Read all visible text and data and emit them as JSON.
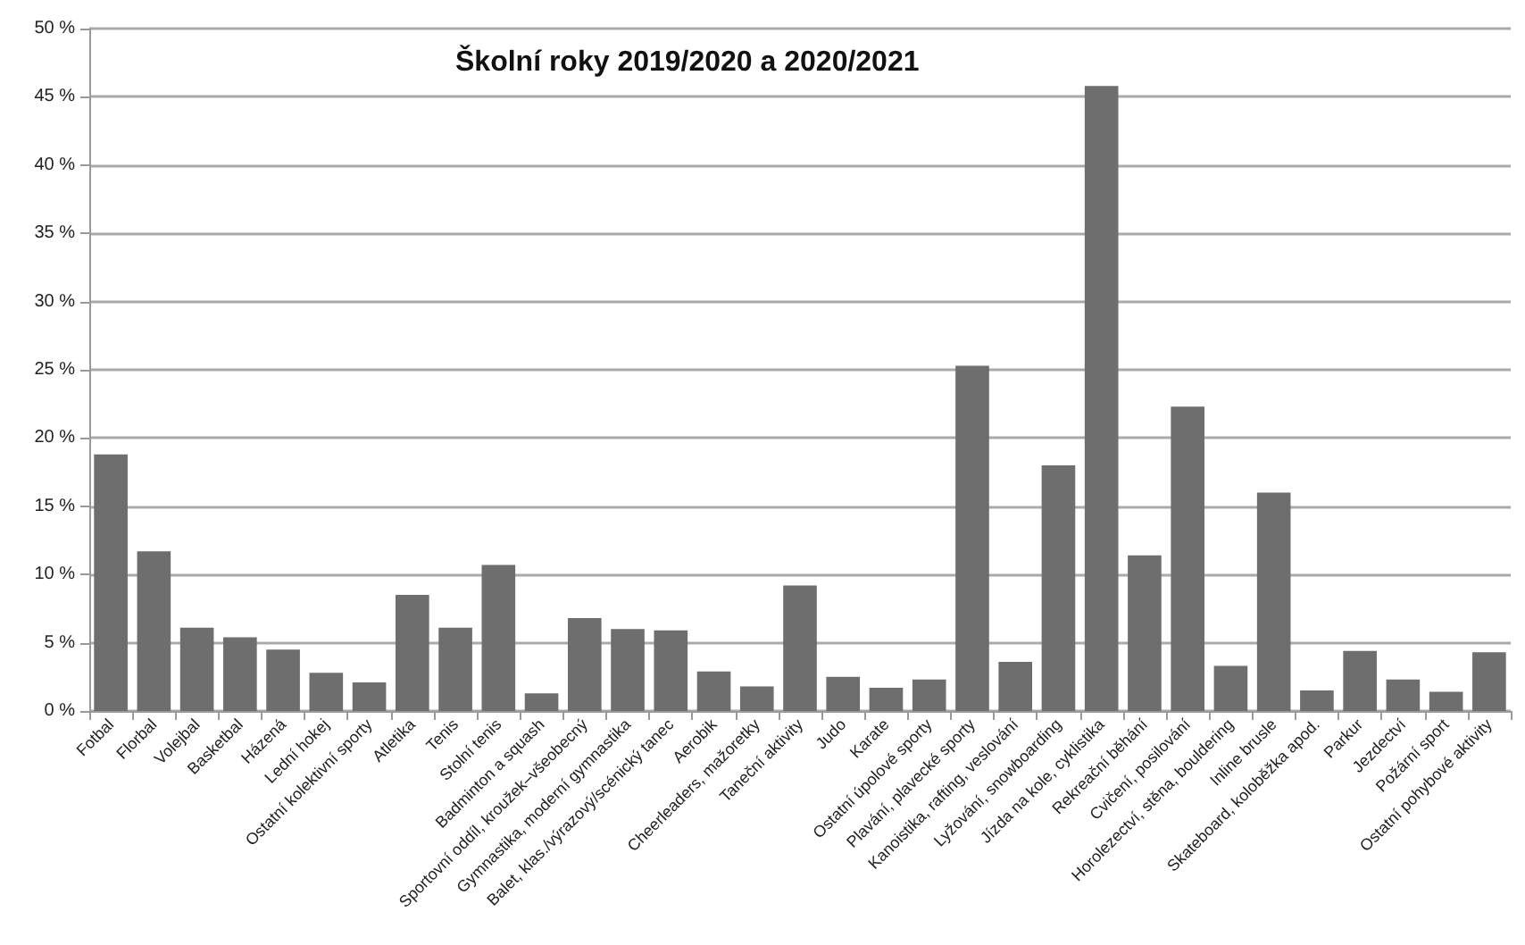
{
  "chart_data": {
    "type": "bar",
    "title": "Školní roky 2019/2020 a 2020/2021",
    "categories": [
      "Fotbal",
      "Florbal",
      "Volejbal",
      "Basketbal",
      "Házená",
      "Lední hokej",
      "Ostatní kolektivní sporty",
      "Atletika",
      "Tenis",
      "Stolní tenis",
      "Badminton a squash",
      "Sportovní oddíl, kroužek–všeobecný",
      "Gymnastika, moderní gymnastika",
      "Balet, klas./výrazový/scénický tanec",
      "Aerobik",
      "Cheerleaders, mažoretky",
      "Taneční aktivity",
      "Judo",
      "Karate",
      "Ostatní úpolové sporty",
      "Plavání, plavecké sporty",
      "Kanoistika, rafting, veslování",
      "Lyžování, snowboarding",
      "Jízda na kole, cyklistika",
      "Rekreační běhání",
      "Cvičení, posilování",
      "Horolezectví, stěna, bouldering",
      "Inline brusle",
      "Skateboard, koloběžka apod.",
      "Parkur",
      "Jezdectví",
      "Požární sport",
      "Ostatní pohybové aktivity"
    ],
    "values": [
      18.8,
      11.7,
      6.1,
      5.4,
      4.5,
      2.8,
      2.1,
      8.5,
      6.1,
      10.7,
      1.3,
      6.8,
      6.0,
      5.9,
      2.9,
      1.8,
      9.2,
      2.5,
      1.7,
      2.3,
      25.3,
      3.6,
      18.0,
      45.8,
      11.4,
      22.3,
      3.3,
      16.0,
      1.5,
      4.4,
      2.3,
      1.4,
      4.3
    ],
    "color": "#6e6e6e",
    "ylim": [
      0,
      50
    ],
    "yticks": [
      {
        "value": 0,
        "label": "0 %"
      },
      {
        "value": 5,
        "label": "5 %"
      },
      {
        "value": 10,
        "label": "10 %"
      },
      {
        "value": 15,
        "label": "15 %"
      },
      {
        "value": 20,
        "label": "20 %"
      },
      {
        "value": 25,
        "label": "25 %"
      },
      {
        "value": 30,
        "label": "30 %"
      },
      {
        "value": 35,
        "label": "35 %"
      },
      {
        "value": 40,
        "label": "40 %"
      },
      {
        "value": 45,
        "label": "45 %"
      },
      {
        "value": 50,
        "label": "50 %"
      }
    ],
    "grid": true
  }
}
